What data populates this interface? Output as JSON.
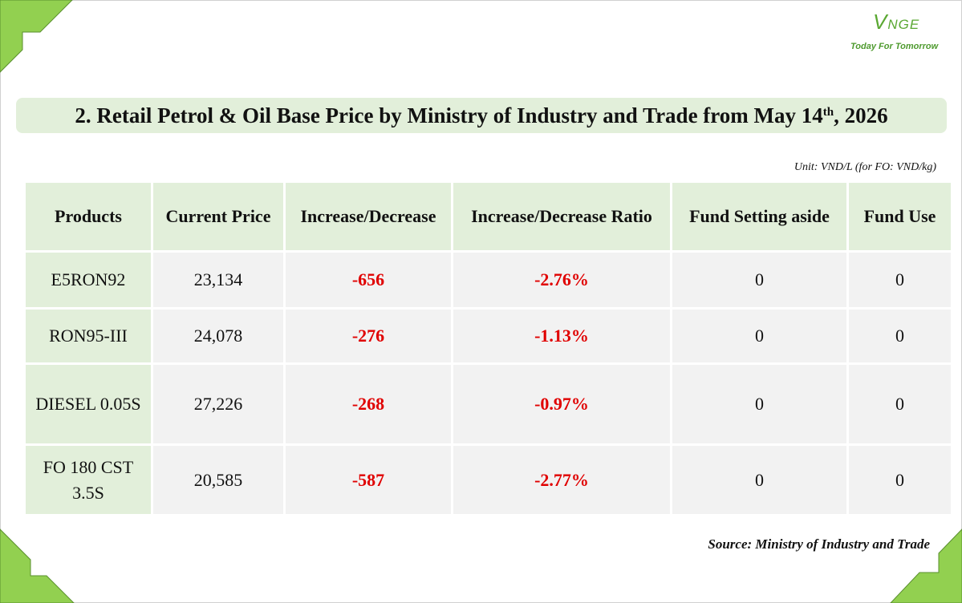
{
  "logo": {
    "name": "VNGE",
    "tagline": "Today For Tomorrow"
  },
  "title": [
    "2. Retail Petrol & Oil Base Price by Ministry of Industry and Trade from May 14",
    "th",
    ", 2026"
  ],
  "unit": "Unit: VND/L (for FO: VND/kg)",
  "table": {
    "header": [
      "Products",
      "Current Price",
      "Increase/Decrease",
      "Increase/Decrease Ratio",
      "Fund Setting aside",
      "Fund Use"
    ],
    "rows": [
      [
        "E5RON92",
        "23,134",
        "-656",
        "-2.76%",
        "0",
        "0"
      ],
      [
        "RON95-III",
        "24,078",
        "-276",
        "-1.13%",
        "0",
        "0"
      ],
      [
        "DIESEL 0.05S",
        "27,226",
        "-268",
        "-0.97%",
        "0",
        "0"
      ],
      [
        "FO 180 CST 3.5S",
        "20,585",
        "-587",
        "-2.77%",
        "0",
        "0"
      ]
    ]
  },
  "source": "Source: Ministry of Industry and Trade"
}
